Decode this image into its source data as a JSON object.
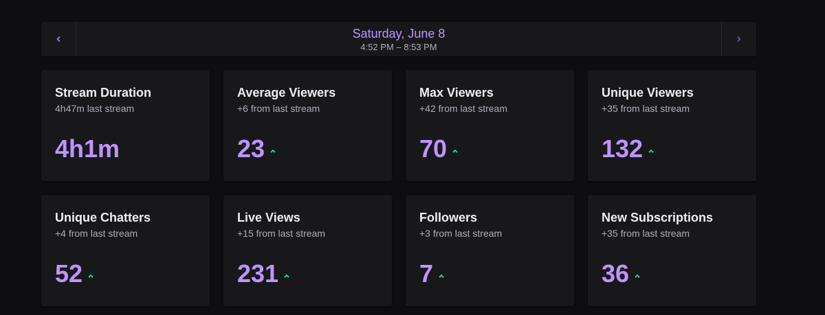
{
  "header": {
    "date": "Saturday, June 8",
    "time_range": "4:52 PM – 8:53 PM",
    "prev_icon": "chevron-left-icon",
    "next_icon": "chevron-right-icon"
  },
  "colors": {
    "accent": "#bf94ff",
    "trend_up": "#00f593",
    "background": "#0e0e10",
    "card": "#18181b"
  },
  "stats": [
    {
      "title": "Stream Duration",
      "subtitle": "4h47m last stream",
      "value": "4h1m",
      "trend": "none"
    },
    {
      "title": "Average Viewers",
      "subtitle": "+6 from last stream",
      "value": "23",
      "trend": "up"
    },
    {
      "title": "Max Viewers",
      "subtitle": "+42 from last stream",
      "value": "70",
      "trend": "up"
    },
    {
      "title": "Unique Viewers",
      "subtitle": "+35 from last stream",
      "value": "132",
      "trend": "up"
    },
    {
      "title": "Unique Chatters",
      "subtitle": "+4 from last stream",
      "value": "52",
      "trend": "up"
    },
    {
      "title": "Live Views",
      "subtitle": "+15 from last stream",
      "value": "231",
      "trend": "up"
    },
    {
      "title": "Followers",
      "subtitle": "+3 from last stream",
      "value": "7",
      "trend": "up"
    },
    {
      "title": "New Subscriptions",
      "subtitle": "+35 from last stream",
      "value": "36",
      "trend": "up"
    }
  ]
}
